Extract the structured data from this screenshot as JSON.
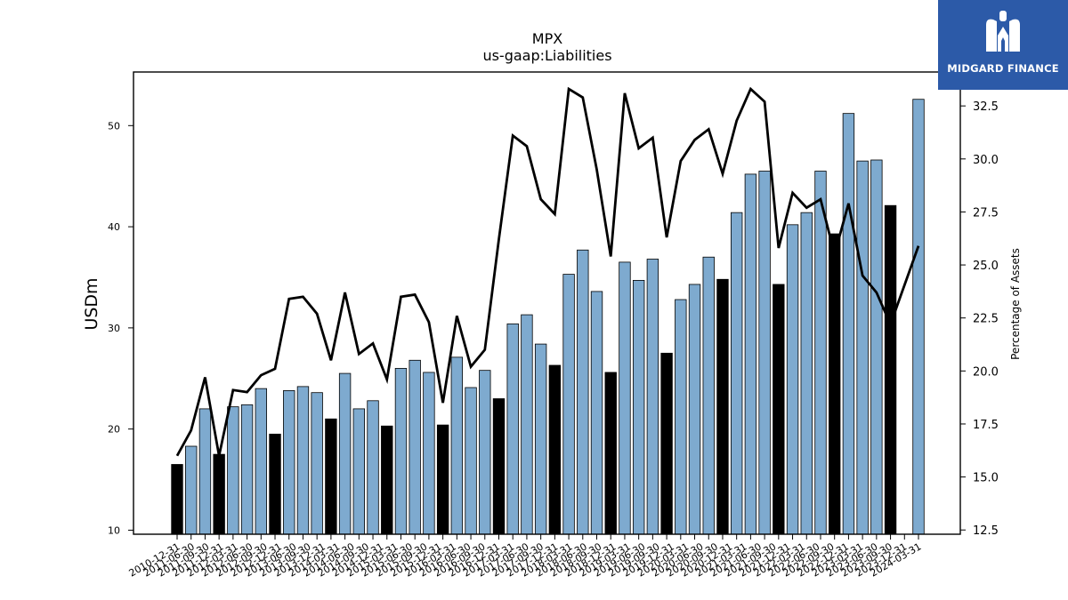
{
  "brand": {
    "name": "MIDGARD FINANCE",
    "logo_icon": "midgard-m-logo-icon",
    "background": "#2c5aa8"
  },
  "colors": {
    "annual_bar": "#000000",
    "quarter_bar": "#7eaacf",
    "line": "#000000"
  },
  "chart_data": {
    "type": "bar",
    "title": "MPX",
    "subtitle": "us-gaap:Liabilities",
    "ylabel": "USDm",
    "y2label": "Percentage of Assets",
    "ylim": [
      9.6,
      55.3
    ],
    "y2lim": [
      12.3,
      34.1
    ],
    "yticks": [
      10,
      20,
      30,
      40,
      50
    ],
    "y2ticks": [
      "12.5",
      "15.0",
      "17.5",
      "20.0",
      "22.5",
      "25.0",
      "27.5",
      "30.0",
      "32.5"
    ],
    "categories": [
      "2010-12-31",
      "2011-03-31",
      "2011-06-30",
      "2011-09-30",
      "2011-12-31",
      "2012-03-31",
      "2012-06-30",
      "2012-09-30",
      "2012-12-31",
      "2013-03-31",
      "2013-06-30",
      "2013-09-30",
      "2013-12-31",
      "2014-03-31",
      "2014-06-30",
      "2014-09-30",
      "2014-12-31",
      "2015-03-31",
      "2015-06-30",
      "2015-09-30",
      "2015-12-31",
      "2016-03-31",
      "2016-06-30",
      "2016-09-30",
      "2016-12-31",
      "2017-03-31",
      "2017-06-30",
      "2017-09-30",
      "2017-12-31",
      "2018-03-31",
      "2018-06-30",
      "2018-09-30",
      "2018-12-31",
      "2019-03-31",
      "2019-06-30",
      "2019-09-30",
      "2019-12-31",
      "2020-03-31",
      "2020-06-30",
      "2020-09-30",
      "2020-12-31",
      "2021-03-31",
      "2021-06-30",
      "2021-09-30",
      "2021-12-31",
      "2022-03-31",
      "2022-06-30",
      "2022-09-30",
      "2022-12-31",
      "2023-03-31",
      "2023-06-30",
      "2023-09-30",
      "2023-12-31",
      "2024-03-31"
    ],
    "xticklabels": [
      "2010-12-31",
      "2011-06-30",
      "2011-09-30",
      "2011-12-31",
      "2012-03-31",
      "2012-06-30",
      "2012-09-30",
      "2012-12-31",
      "2013-06-30",
      "2013-09-30",
      "2013-12-31",
      "2014-03-31",
      "2014-06-30",
      "2014-09-30",
      "2014-12-31",
      "2015-03-31",
      "2015-06-30",
      "2015-09-30",
      "2015-12-31",
      "2016-03-31",
      "2016-06-30",
      "2016-09-30",
      "2016-12-31",
      "2017-03-31",
      "2017-06-30",
      "2017-09-30",
      "2017-12-31",
      "2018-03-31",
      "2018-06-30",
      "2018-09-30",
      "2018-12-31",
      "2019-03-31",
      "2019-06-30",
      "2019-09-30",
      "2019-12-31",
      "2020-03-31",
      "2020-06-30",
      "2020-09-30",
      "2020-12-31",
      "2021-03-31",
      "2021-06-30",
      "2021-09-30",
      "2021-12-31",
      "2022-03-31",
      "2022-06-30",
      "2022-09-30",
      "2022-12-31",
      "2023-03-31",
      "2023-06-30",
      "2023-09-30",
      "2023-12-31",
      "2024-03-31"
    ],
    "series": [
      {
        "axis": "left",
        "kind": "bar",
        "values": [
          16.5,
          18.3,
          22.0,
          17.5,
          22.2,
          22.4,
          24.0,
          19.5,
          23.8,
          24.2,
          23.6,
          21.0,
          25.5,
          22.0,
          22.8,
          20.3,
          26.0,
          26.8,
          25.6,
          20.4,
          27.1,
          24.1,
          25.8,
          23.0,
          30.4,
          31.3,
          28.4,
          26.3,
          35.3,
          37.7,
          33.6,
          25.6,
          36.5,
          34.7,
          36.8,
          27.5,
          32.8,
          34.3,
          37.0,
          34.8,
          41.4,
          45.2,
          45.5,
          34.3,
          40.2,
          41.4,
          45.5,
          39.3,
          51.2,
          46.5,
          46.6,
          42.1,
          null,
          52.6
        ],
        "annual": [
          true,
          false,
          false,
          true,
          false,
          false,
          false,
          true,
          false,
          false,
          false,
          true,
          false,
          false,
          false,
          true,
          false,
          false,
          false,
          true,
          false,
          false,
          false,
          true,
          false,
          false,
          false,
          true,
          false,
          false,
          false,
          true,
          false,
          false,
          false,
          true,
          false,
          false,
          false,
          true,
          false,
          false,
          false,
          true,
          false,
          false,
          false,
          true,
          false,
          false,
          false,
          true,
          false,
          false
        ]
      },
      {
        "axis": "right",
        "kind": "line",
        "values": [
          16.0,
          17.2,
          19.7,
          16.0,
          19.1,
          19.0,
          19.8,
          20.1,
          23.4,
          23.5,
          22.7,
          20.5,
          23.7,
          20.8,
          21.3,
          19.6,
          23.5,
          23.6,
          22.3,
          18.5,
          22.6,
          20.2,
          21.0,
          26.2,
          31.1,
          30.6,
          28.1,
          27.4,
          33.3,
          32.9,
          29.5,
          25.4,
          33.1,
          30.5,
          31.0,
          26.3,
          29.9,
          30.9,
          31.4,
          29.3,
          31.8,
          33.3,
          32.7,
          25.8,
          28.4,
          27.7,
          28.1,
          25.5,
          27.9,
          24.5,
          23.7,
          22.2,
          null,
          25.9
        ]
      }
    ]
  }
}
